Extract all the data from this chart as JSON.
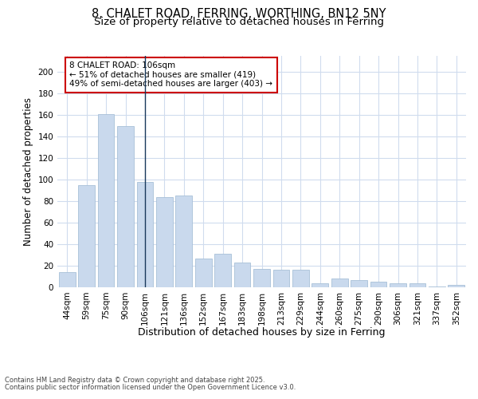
{
  "title1": "8, CHALET ROAD, FERRING, WORTHING, BN12 5NY",
  "title2": "Size of property relative to detached houses in Ferring",
  "xlabel": "Distribution of detached houses by size in Ferring",
  "ylabel": "Number of detached properties",
  "categories": [
    "44sqm",
    "59sqm",
    "75sqm",
    "90sqm",
    "106sqm",
    "121sqm",
    "136sqm",
    "152sqm",
    "167sqm",
    "183sqm",
    "198sqm",
    "213sqm",
    "229sqm",
    "244sqm",
    "260sqm",
    "275sqm",
    "290sqm",
    "306sqm",
    "321sqm",
    "337sqm",
    "352sqm"
  ],
  "values": [
    14,
    95,
    161,
    150,
    98,
    84,
    85,
    27,
    31,
    23,
    17,
    16,
    16,
    4,
    8,
    7,
    5,
    4,
    4,
    1,
    2
  ],
  "bar_color": "#c9d9ed",
  "bar_edge_color": "#a8c0d8",
  "highlight_index": 4,
  "vline_color": "#1a3a5c",
  "annotation_title": "8 CHALET ROAD: 106sqm",
  "annotation_line1": "← 51% of detached houses are smaller (419)",
  "annotation_line2": "49% of semi-detached houses are larger (403) →",
  "annotation_box_color": "#ffffff",
  "annotation_border_color": "#cc0000",
  "yticks": [
    0,
    20,
    40,
    60,
    80,
    100,
    120,
    140,
    160,
    180,
    200
  ],
  "ylim": [
    0,
    215
  ],
  "footer1": "Contains HM Land Registry data © Crown copyright and database right 2025.",
  "footer2": "Contains public sector information licensed under the Open Government Licence v3.0.",
  "bg_color": "#ffffff",
  "plot_bg_color": "#ffffff",
  "grid_color": "#d0dcee",
  "title_fontsize": 10.5,
  "subtitle_fontsize": 9.5,
  "tick_fontsize": 7.5,
  "ylabel_fontsize": 8.5,
  "xlabel_fontsize": 9,
  "footer_fontsize": 6.0,
  "annotation_fontsize": 7.5
}
